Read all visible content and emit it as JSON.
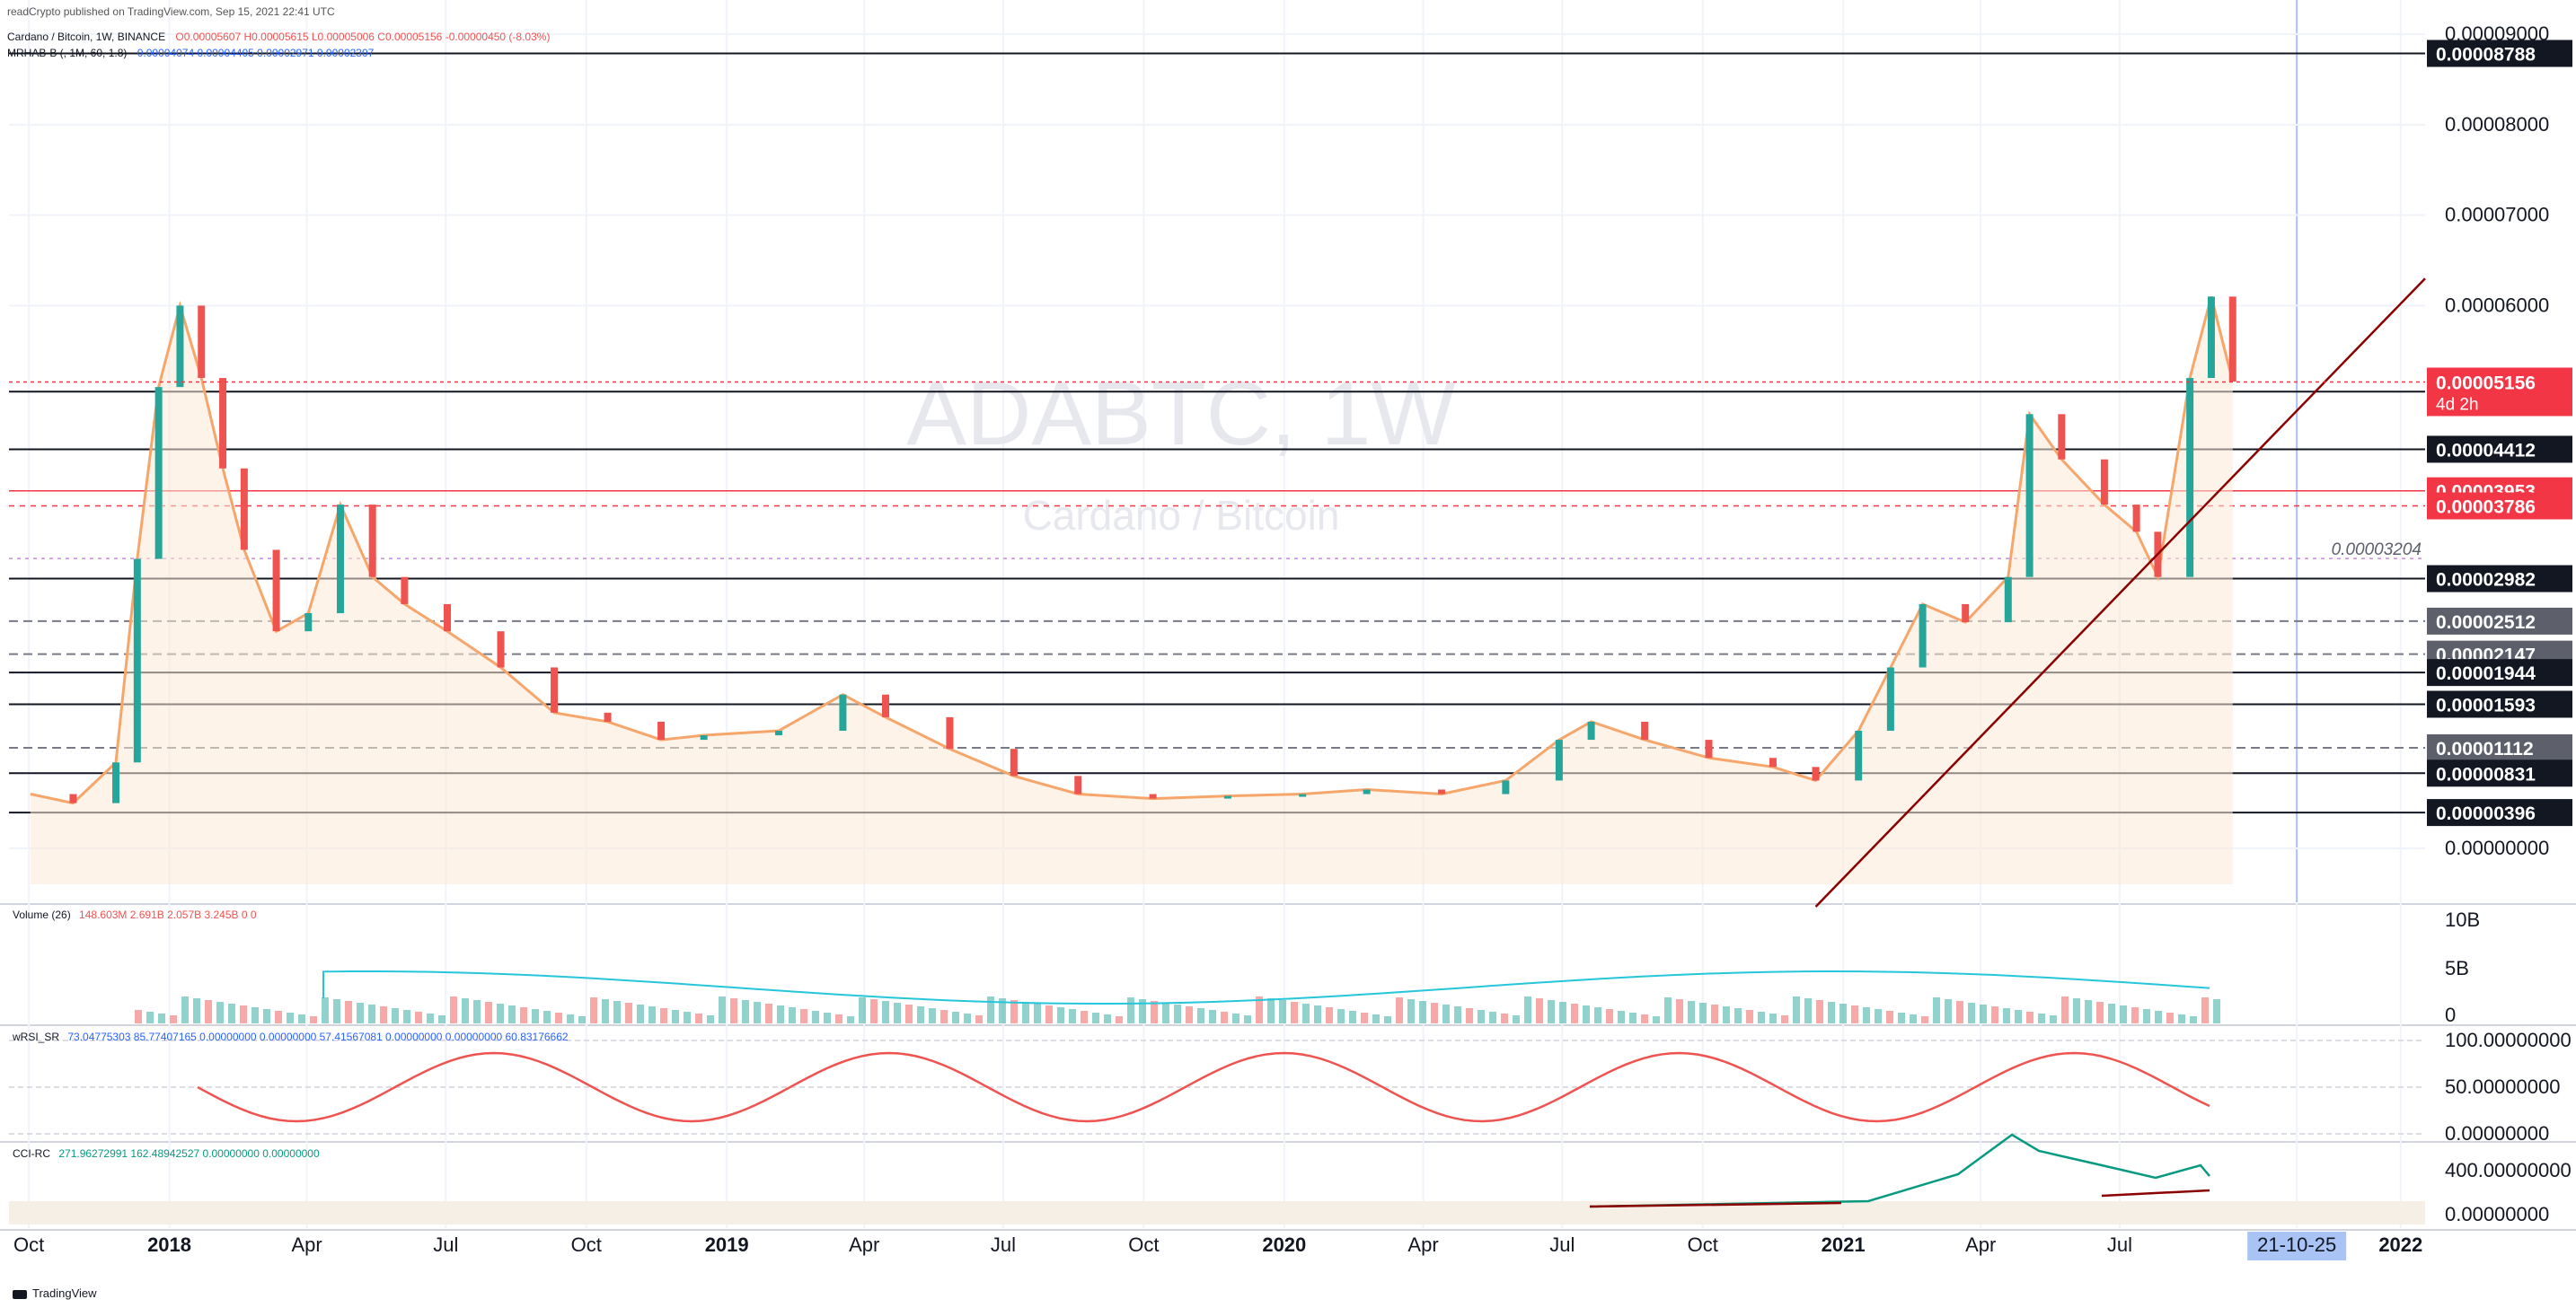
{
  "header": {
    "published": "readCrypto published on TradingView.com, Sep 15, 2021 22:41 UTC",
    "symbol_line": "Cardano / Bitcoin, 1W, BINANCE",
    "ohlc": "O0.00005607  H0.00005615  L0.00005006  C0.00005156  -0.00000450 (-8.03%)",
    "indicator_line_label": "MRHAB-B (, 1M, 60, 1.8)",
    "indicator_line_values": "0.00004074  0.00004405  0.00002971  0.00002307"
  },
  "watermark": {
    "symbol": "ADABTC, 1W",
    "name": "Cardano / Bitcoin"
  },
  "colors": {
    "up": "#26a69a",
    "down": "#ef5350",
    "grid": "#f0f3fa",
    "accent_blue": "#2962ff",
    "price_line": "#f23645",
    "volume_ma": "#26c6da"
  },
  "chart_data": [
    {
      "type": "candlestick",
      "title": "Cardano / Bitcoin, 1W, BINANCE",
      "x_ticks": [
        "Oct",
        "2018",
        "Apr",
        "Jul",
        "Oct",
        "2019",
        "Apr",
        "Jul",
        "Oct",
        "2020",
        "Apr",
        "Jul",
        "Oct",
        "2021",
        "Apr",
        "Jul",
        "21-10-25",
        "2022"
      ],
      "y_ticks": [
        "0.00009000",
        "0.00008000",
        "0.00007000",
        "0.00006000",
        "0.00000000"
      ],
      "ylim": [
        0,
        9.2e-05
      ],
      "last_price": "0.00005156",
      "countdown": "4d 2h",
      "horizontal_levels": [
        {
          "value": "0.00008788",
          "style": "solid"
        },
        {
          "value": "0.00005049",
          "style": "solid"
        },
        {
          "value": "0.00004412",
          "style": "solid"
        },
        {
          "value": "0.00003953",
          "style": "solid-red"
        },
        {
          "value": "0.00003786",
          "style": "dashed-red"
        },
        {
          "value": "0.00002982",
          "style": "solid"
        },
        {
          "value": "0.00002512",
          "style": "dashed"
        },
        {
          "value": "0.00002147",
          "style": "dashed"
        },
        {
          "value": "0.00001944",
          "style": "solid"
        },
        {
          "value": "0.00001593",
          "style": "solid"
        },
        {
          "value": "0.00001112",
          "style": "dashed"
        },
        {
          "value": "0.00000831",
          "style": "solid"
        },
        {
          "value": "0.00000396",
          "style": "solid"
        }
      ],
      "annotation": "0.00003204",
      "price_path": [
        [
          "2017-10-02",
          6e-06
        ],
        [
          "2017-10-30",
          5e-06
        ],
        [
          "2017-11-27",
          9.5e-06
        ],
        [
          "2017-12-11",
          3.2e-05
        ],
        [
          "2017-12-25",
          5.1e-05
        ],
        [
          "2018-01-08",
          6e-05
        ],
        [
          "2018-01-22",
          5.2e-05
        ],
        [
          "2018-02-05",
          4.2e-05
        ],
        [
          "2018-02-19",
          3.3e-05
        ],
        [
          "2018-03-12",
          2.4e-05
        ],
        [
          "2018-04-02",
          2.6e-05
        ],
        [
          "2018-04-23",
          3.8e-05
        ],
        [
          "2018-05-14",
          3e-05
        ],
        [
          "2018-06-04",
          2.7e-05
        ],
        [
          "2018-07-02",
          2.4e-05
        ],
        [
          "2018-08-06",
          2e-05
        ],
        [
          "2018-09-10",
          1.5e-05
        ],
        [
          "2018-10-15",
          1.4e-05
        ],
        [
          "2018-11-19",
          1.2e-05
        ],
        [
          "2018-12-17",
          1.25e-05
        ],
        [
          "2019-02-04",
          1.3e-05
        ],
        [
          "2019-03-18",
          1.7e-05
        ],
        [
          "2019-04-15",
          1.45e-05
        ],
        [
          "2019-05-27",
          1.1e-05
        ],
        [
          "2019-07-08",
          8e-06
        ],
        [
          "2019-08-19",
          6e-06
        ],
        [
          "2019-10-07",
          5.5e-06
        ],
        [
          "2019-11-25",
          5.8e-06
        ],
        [
          "2020-01-13",
          6e-06
        ],
        [
          "2020-02-24",
          6.5e-06
        ],
        [
          "2020-04-13",
          6e-06
        ],
        [
          "2020-05-25",
          7.5e-06
        ],
        [
          "2020-06-29",
          1.2e-05
        ],
        [
          "2020-07-20",
          1.4e-05
        ],
        [
          "2020-08-24",
          1.2e-05
        ],
        [
          "2020-10-05",
          1e-05
        ],
        [
          "2020-11-16",
          9e-06
        ],
        [
          "2020-12-14",
          7.5e-06
        ],
        [
          "2021-01-11",
          1.3e-05
        ],
        [
          "2021-02-01",
          2e-05
        ],
        [
          "2021-02-22",
          2.7e-05
        ],
        [
          "2021-03-22",
          2.5e-05
        ],
        [
          "2021-04-19",
          3e-05
        ],
        [
          "2021-05-03",
          4.8e-05
        ],
        [
          "2021-05-24",
          4.3e-05
        ],
        [
          "2021-06-21",
          3.8e-05
        ],
        [
          "2021-07-12",
          3.5e-05
        ],
        [
          "2021-07-26",
          3e-05
        ],
        [
          "2021-08-16",
          5.2e-05
        ],
        [
          "2021-08-30",
          6.1e-05
        ],
        [
          "2021-09-13",
          5.16e-05
        ]
      ]
    },
    {
      "type": "bar",
      "title": "Volume (26)",
      "legend_values": "148.603M  2.691B  2.057B  3.245B  0  0",
      "y_ticks": [
        "10B",
        "5B",
        "0"
      ]
    },
    {
      "type": "line",
      "title": "wRSI_SR",
      "legend_values": "73.04775303  85.77407165  0.00000000  0.00000000  57.41567081  0.00000000  0.00000000  60.83176662",
      "y_ticks": [
        "100.00000000",
        "50.00000000",
        "0.00000000"
      ]
    },
    {
      "type": "line",
      "title": "CCI-RC",
      "legend_values": "271.96272991  162.48942527  0.00000000  0.00000000",
      "y_ticks": [
        "400.00000000",
        "0.00000000"
      ]
    }
  ],
  "footer": {
    "brand": "TradingView"
  }
}
